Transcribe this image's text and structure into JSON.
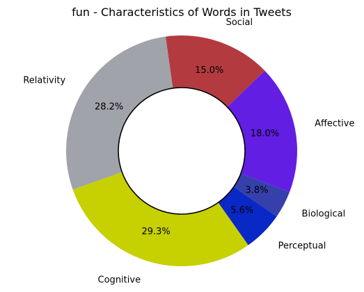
{
  "chart_data": {
    "type": "pie",
    "variant": "donut",
    "title": "fun - Characteristics of Words in Tweets",
    "slices": [
      {
        "label": "Social",
        "value": 15.0,
        "pct_label": "15.0%",
        "color": "#b33b40"
      },
      {
        "label": "Affective",
        "value": 18.0,
        "pct_label": "18.0%",
        "color": "#621ee3"
      },
      {
        "label": "Biological",
        "value": 3.8,
        "pct_label": "3.8%",
        "color": "#3640ab"
      },
      {
        "label": "Perceptual",
        "value": 5.6,
        "pct_label": "5.6%",
        "color": "#0a28c6"
      },
      {
        "label": "Cognitive",
        "value": 29.3,
        "pct_label": "29.3%",
        "color": "#c7d001"
      },
      {
        "label": "Relativity",
        "value": 28.2,
        "pct_label": "28.2%",
        "color": "#a0a3aa"
      }
    ],
    "start_angle_deg": 98,
    "direction": "clockwise",
    "legend": "none"
  }
}
